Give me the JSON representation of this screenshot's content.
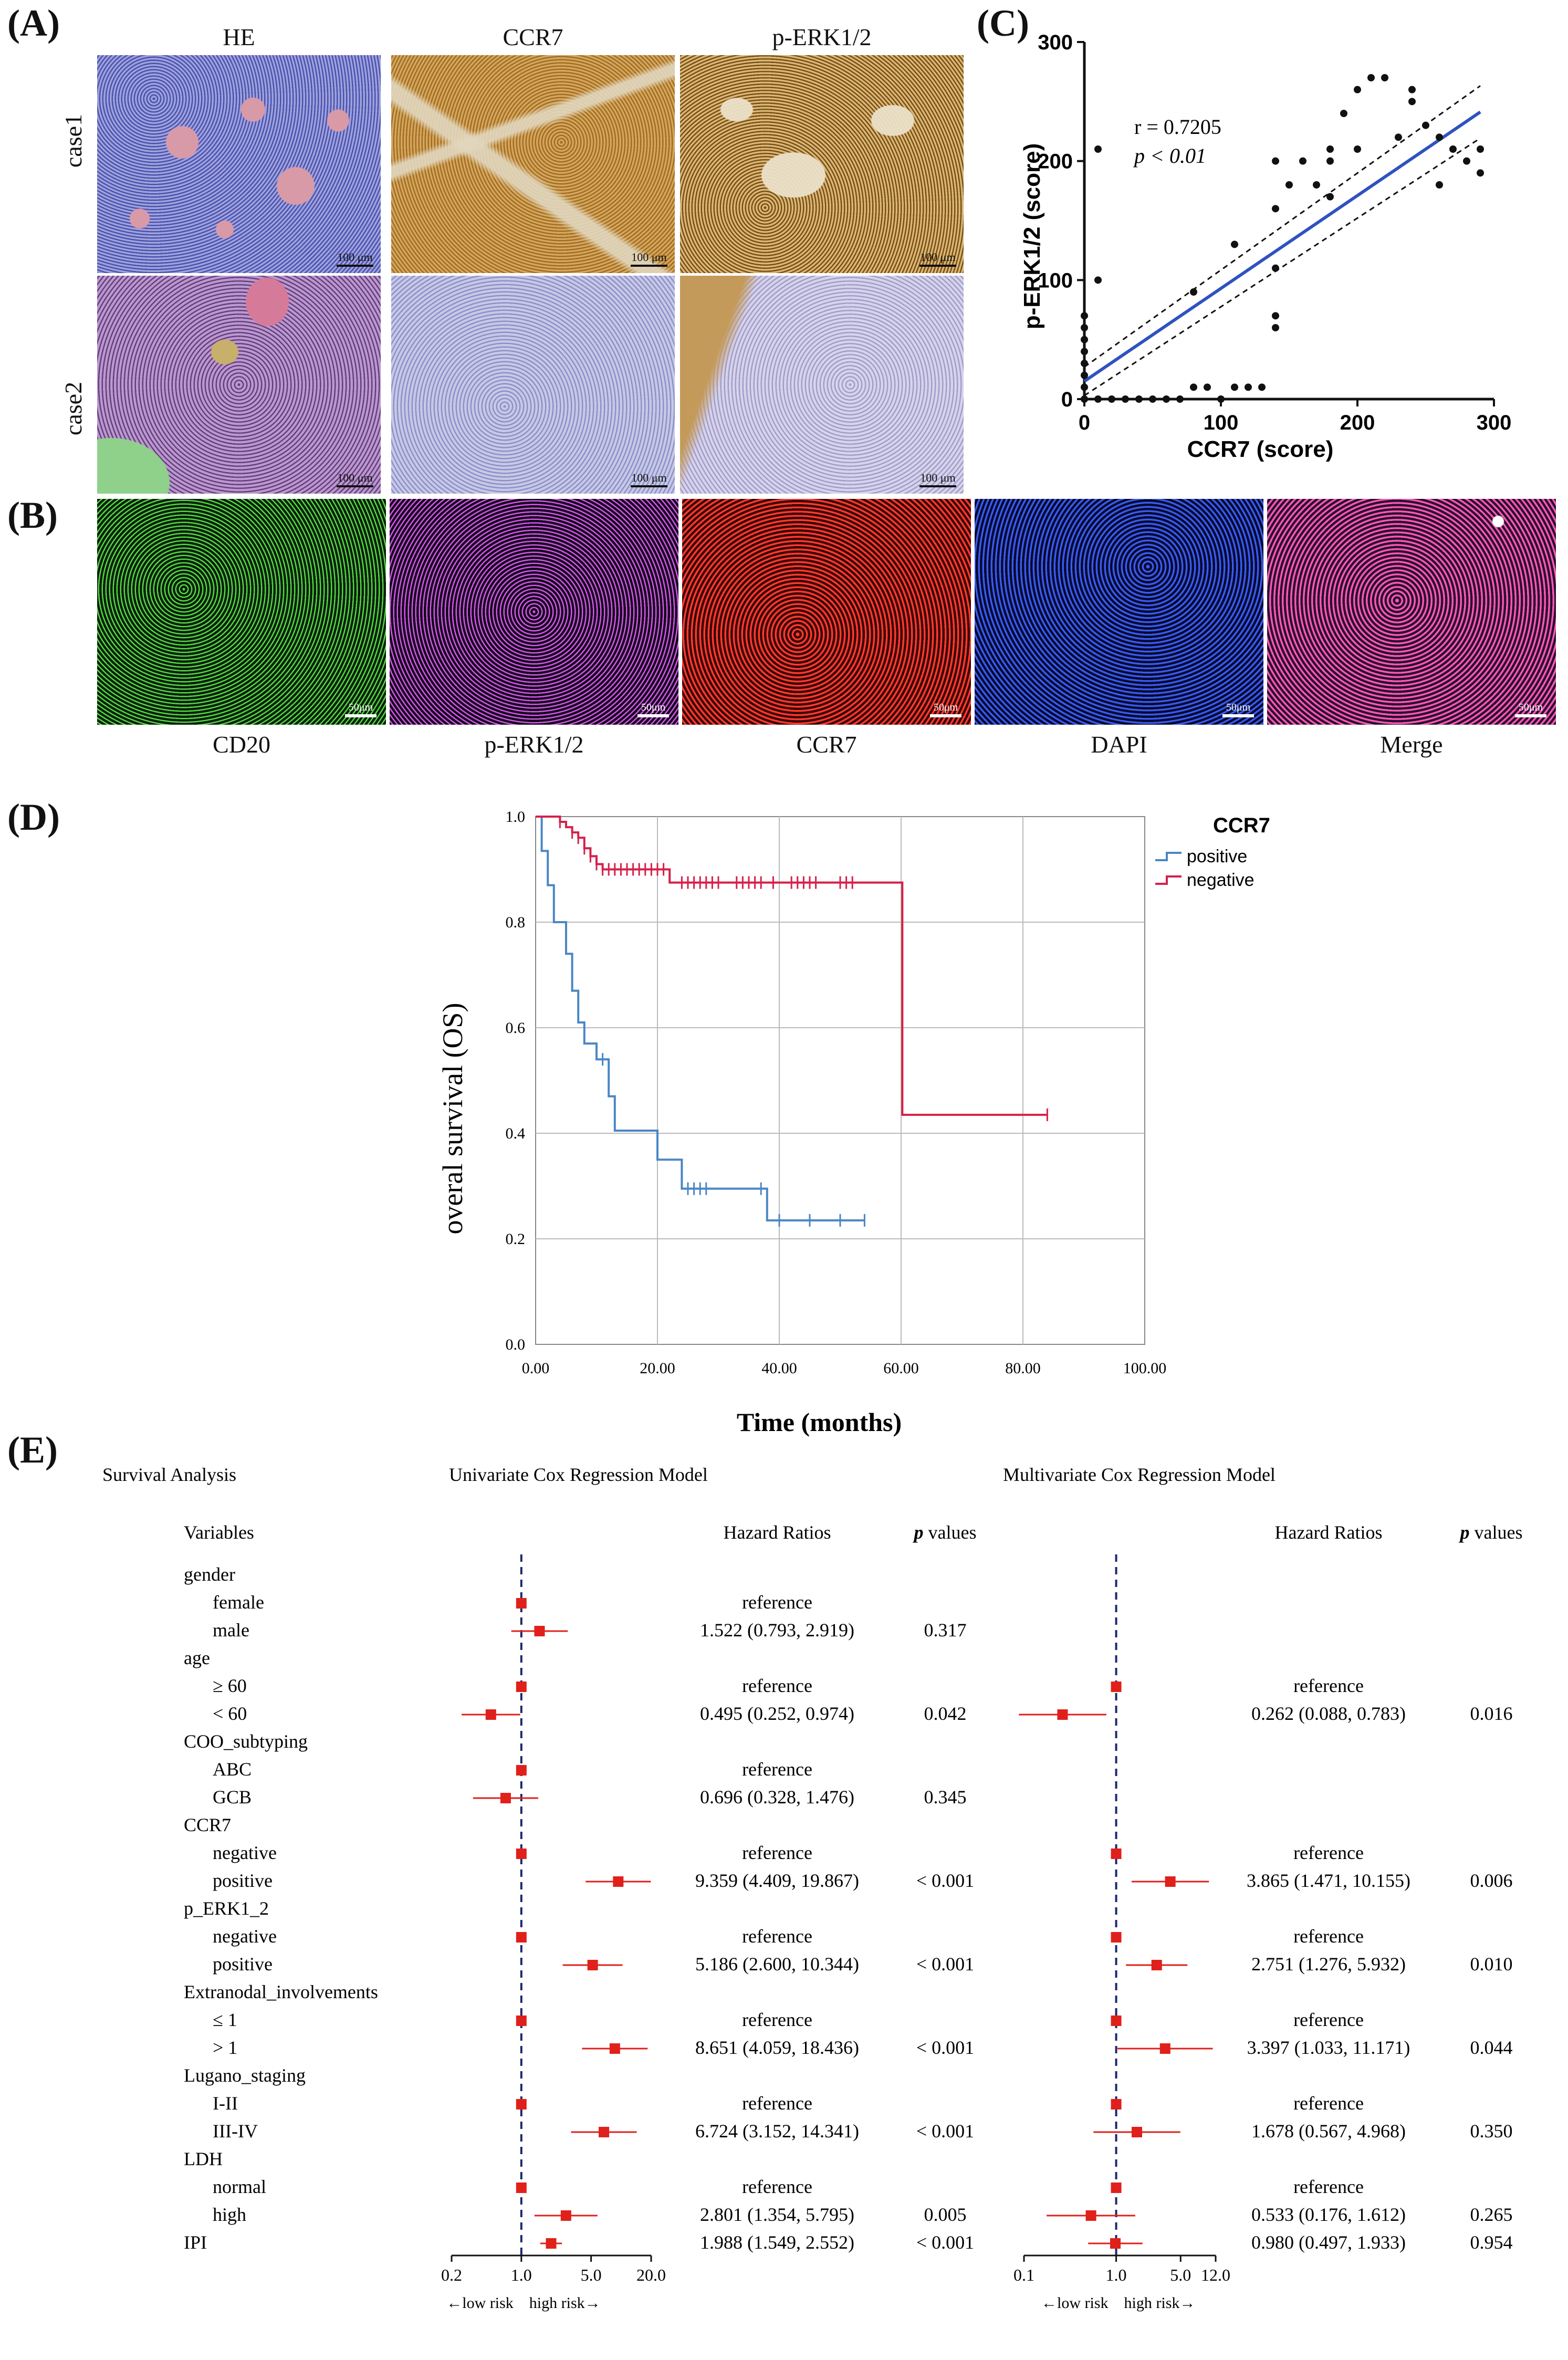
{
  "panels": {
    "A": {
      "label": "(A)",
      "columns": [
        "HE",
        "CCR7",
        "p-ERK1/2"
      ],
      "rows": [
        "case1",
        "case2"
      ],
      "scale": "100 μm"
    },
    "B": {
      "label": "(B)",
      "channels": [
        {
          "name": "CD20",
          "color": "#3dbb2e"
        },
        {
          "name": "p-ERK1/2",
          "color": "#a43bbf"
        },
        {
          "name": "CCR7",
          "color": "#e0201b"
        },
        {
          "name": "DAPI",
          "color": "#2a48c7"
        },
        {
          "name": "Merge",
          "color": "#111111"
        }
      ],
      "scale": "50μm"
    },
    "C": {
      "label": "(C)"
    },
    "D": {
      "label": "(D)"
    },
    "E": {
      "label": "(E)"
    }
  },
  "colors": {
    "he": "#6a6ec0",
    "ccr7_ihc": "#c89a3e",
    "perk_ihc": "#b98a2a",
    "negative_stain": "#a9abd6",
    "regression_line": "#2e52c0",
    "km_positive": "#4a86c6",
    "km_negative": "#d6204a",
    "forest_marker": "#e0201b"
  },
  "chart_data": [
    {
      "id": "C",
      "type": "scatter",
      "xlabel": "CCR7 (score)",
      "ylabel": "p-ERK1/2 (score)",
      "xlim": [
        0,
        300
      ],
      "ylim": [
        0,
        300
      ],
      "xticks": [
        0,
        100,
        200,
        300
      ],
      "yticks": [
        0,
        100,
        200,
        300
      ],
      "annotations": [
        "r = 0.7205",
        "p < 0.01"
      ],
      "fit": {
        "slope": 0.78,
        "intercept": 15
      },
      "points": [
        [
          0,
          0
        ],
        [
          0,
          10
        ],
        [
          0,
          20
        ],
        [
          0,
          30
        ],
        [
          0,
          40
        ],
        [
          0,
          50
        ],
        [
          0,
          60
        ],
        [
          0,
          70
        ],
        [
          10,
          210
        ],
        [
          10,
          100
        ],
        [
          10,
          0
        ],
        [
          20,
          0
        ],
        [
          30,
          0
        ],
        [
          40,
          0
        ],
        [
          50,
          0
        ],
        [
          60,
          0
        ],
        [
          70,
          0
        ],
        [
          80,
          10
        ],
        [
          80,
          90
        ],
        [
          90,
          10
        ],
        [
          100,
          0
        ],
        [
          110,
          130
        ],
        [
          110,
          10
        ],
        [
          120,
          10
        ],
        [
          130,
          10
        ],
        [
          140,
          60
        ],
        [
          140,
          70
        ],
        [
          140,
          110
        ],
        [
          140,
          160
        ],
        [
          140,
          200
        ],
        [
          150,
          180
        ],
        [
          160,
          200
        ],
        [
          170,
          180
        ],
        [
          180,
          170
        ],
        [
          180,
          200
        ],
        [
          180,
          210
        ],
        [
          190,
          240
        ],
        [
          200,
          210
        ],
        [
          200,
          260
        ],
        [
          210,
          270
        ],
        [
          220,
          270
        ],
        [
          230,
          220
        ],
        [
          240,
          250
        ],
        [
          240,
          260
        ],
        [
          250,
          230
        ],
        [
          260,
          220
        ],
        [
          260,
          180
        ],
        [
          270,
          210
        ],
        [
          280,
          200
        ],
        [
          290,
          190
        ],
        [
          290,
          210
        ]
      ]
    },
    {
      "id": "D",
      "type": "line",
      "title": "CCR7",
      "xlabel": "Time (months)",
      "ylabel": "overal survival (OS)",
      "xlim": [
        0,
        100
      ],
      "ylim": [
        0,
        1.0
      ],
      "xticks": [
        "0.00",
        "20.00",
        "40.00",
        "60.00",
        "80.00",
        "100.00"
      ],
      "yticks": [
        "0.0",
        "0.2",
        "0.4",
        "0.6",
        "0.8",
        "1.0"
      ],
      "grid": true,
      "legend": "top-right",
      "series": [
        {
          "name": "positive",
          "steps": [
            [
              0,
              1.0
            ],
            [
              1,
              0.935
            ],
            [
              2,
              0.87
            ],
            [
              3,
              0.8
            ],
            [
              5,
              0.74
            ],
            [
              6,
              0.67
            ],
            [
              7,
              0.61
            ],
            [
              8,
              0.57
            ],
            [
              10,
              0.54
            ],
            [
              12,
              0.47
            ],
            [
              13,
              0.405
            ],
            [
              20,
              0.35
            ],
            [
              24,
              0.295
            ],
            [
              38,
              0.235
            ],
            [
              54,
              0.235
            ]
          ],
          "censor": [
            11,
            25,
            26,
            27,
            28,
            37,
            40,
            45,
            50,
            54
          ]
        },
        {
          "name": "negative",
          "steps": [
            [
              0,
              1.0
            ],
            [
              4,
              0.99
            ],
            [
              5,
              0.98
            ],
            [
              6,
              0.97
            ],
            [
              7,
              0.96
            ],
            [
              8,
              0.94
            ],
            [
              9,
              0.925
            ],
            [
              10,
              0.91
            ],
            [
              11,
              0.9
            ],
            [
              22,
              0.875
            ],
            [
              60,
              0.875
            ],
            [
              60.2,
              0.435
            ],
            [
              84,
              0.435
            ]
          ],
          "censor": [
            4,
            6,
            7,
            8,
            9,
            10,
            11,
            12,
            13,
            14,
            15,
            16,
            17,
            18,
            19,
            20,
            21,
            24,
            25,
            26,
            27,
            28,
            29,
            30,
            33,
            34,
            35,
            36,
            37,
            39,
            42,
            43,
            44,
            45,
            46,
            50,
            51,
            52,
            84
          ]
        }
      ]
    },
    {
      "id": "E",
      "type": "table",
      "title": "Survival Analysis",
      "col_variables": "Variables",
      "models": [
        {
          "title": "Univariate Cox Regression Model",
          "hr_header": "Hazard Ratios",
          "p_header": "p values",
          "axis": "log",
          "xlim": [
            0.2,
            20.0
          ],
          "ticks": [
            "0.2",
            "1.0",
            "5.0",
            "20.0"
          ]
        },
        {
          "title": "Multivariate Cox Regression Model",
          "hr_header": "Hazard Ratios",
          "p_header": "p values",
          "axis": "log",
          "xlim": [
            0.1,
            12.0
          ],
          "ticks": [
            "0.1",
            "1.0",
            "5.0",
            "12.0"
          ]
        }
      ],
      "risk_labels": [
        "←low risk",
        "high risk→"
      ],
      "rows": [
        {
          "label": "gender",
          "header": true
        },
        {
          "label": "female",
          "uni": {
            "text": "reference",
            "hr": 1
          }
        },
        {
          "label": "male",
          "uni": {
            "text": "1.522 (0.793, 2.919)",
            "p": "0.317",
            "hr": 1.522,
            "lo": 0.793,
            "hi": 2.919
          }
        },
        {
          "label": "age",
          "header": true
        },
        {
          "label": "≥ 60",
          "uni": {
            "text": "reference",
            "hr": 1
          },
          "multi": {
            "text": "reference",
            "hr": 1
          }
        },
        {
          "label": "< 60",
          "uni": {
            "text": "0.495 (0.252, 0.974)",
            "p": "0.042",
            "hr": 0.495,
            "lo": 0.252,
            "hi": 0.974
          },
          "multi": {
            "text": "0.262 (0.088, 0.783)",
            "p": "0.016",
            "hr": 0.262,
            "lo": 0.088,
            "hi": 0.783
          }
        },
        {
          "label": "COO_subtyping",
          "header": true
        },
        {
          "label": "ABC",
          "uni": {
            "text": "reference",
            "hr": 1
          }
        },
        {
          "label": "GCB",
          "uni": {
            "text": "0.696 (0.328, 1.476)",
            "p": "0.345",
            "hr": 0.696,
            "lo": 0.328,
            "hi": 1.476
          }
        },
        {
          "label": "CCR7",
          "header": true
        },
        {
          "label": "negative",
          "uni": {
            "text": "reference",
            "hr": 1
          },
          "multi": {
            "text": "reference",
            "hr": 1
          }
        },
        {
          "label": "positive",
          "uni": {
            "text": "9.359 (4.409, 19.867)",
            "p": "< 0.001",
            "hr": 9.359,
            "lo": 4.409,
            "hi": 19.867
          },
          "multi": {
            "text": "3.865 (1.471, 10.155)",
            "p": "0.006",
            "hr": 3.865,
            "lo": 1.471,
            "hi": 10.155
          }
        },
        {
          "label": "p_ERK1_2",
          "header": true
        },
        {
          "label": "negative",
          "uni": {
            "text": "reference",
            "hr": 1
          },
          "multi": {
            "text": "reference",
            "hr": 1
          }
        },
        {
          "label": "positive",
          "uni": {
            "text": "5.186 (2.600, 10.344)",
            "p": "< 0.001",
            "hr": 5.186,
            "lo": 2.6,
            "hi": 10.344
          },
          "multi": {
            "text": "2.751 (1.276, 5.932)",
            "p": "0.010",
            "hr": 2.751,
            "lo": 1.276,
            "hi": 5.932
          }
        },
        {
          "label": "Extranodal_involvements",
          "header": true
        },
        {
          "label": "≤ 1",
          "uni": {
            "text": "reference",
            "hr": 1
          },
          "multi": {
            "text": "reference",
            "hr": 1
          }
        },
        {
          "label": "> 1",
          "uni": {
            "text": "8.651 (4.059, 18.436)",
            "p": "< 0.001",
            "hr": 8.651,
            "lo": 4.059,
            "hi": 18.436
          },
          "multi": {
            "text": "3.397 (1.033, 11.171)",
            "p": "0.044",
            "hr": 3.397,
            "lo": 1.033,
            "hi": 11.171
          }
        },
        {
          "label": "Lugano_staging",
          "header": true
        },
        {
          "label": "I-II",
          "uni": {
            "text": "reference",
            "hr": 1
          },
          "multi": {
            "text": "reference",
            "hr": 1
          }
        },
        {
          "label": "III-IV",
          "uni": {
            "text": "6.724 (3.152, 14.341)",
            "p": "< 0.001",
            "hr": 6.724,
            "lo": 3.152,
            "hi": 14.341
          },
          "multi": {
            "text": "1.678 (0.567, 4.968)",
            "p": "0.350",
            "hr": 1.678,
            "lo": 0.567,
            "hi": 4.968
          }
        },
        {
          "label": "LDH",
          "header": true
        },
        {
          "label": "normal",
          "uni": {
            "text": "reference",
            "hr": 1
          },
          "multi": {
            "text": "reference",
            "hr": 1
          }
        },
        {
          "label": "high",
          "uni": {
            "text": "2.801 (1.354, 5.795)",
            "p": "0.005",
            "hr": 2.801,
            "lo": 1.354,
            "hi": 5.795
          },
          "multi": {
            "text": "0.533 (0.176, 1.612)",
            "p": "0.265",
            "hr": 0.533,
            "lo": 0.176,
            "hi": 1.612
          }
        },
        {
          "label": "IPI",
          "top": true,
          "uni": {
            "text": "1.988 (1.549, 2.552)",
            "p": "< 0.001",
            "hr": 1.988,
            "lo": 1.549,
            "hi": 2.552
          },
          "multi": {
            "text": "0.980 (0.497, 1.933)",
            "p": "0.954",
            "hr": 0.98,
            "lo": 0.497,
            "hi": 1.933
          }
        }
      ]
    }
  ]
}
